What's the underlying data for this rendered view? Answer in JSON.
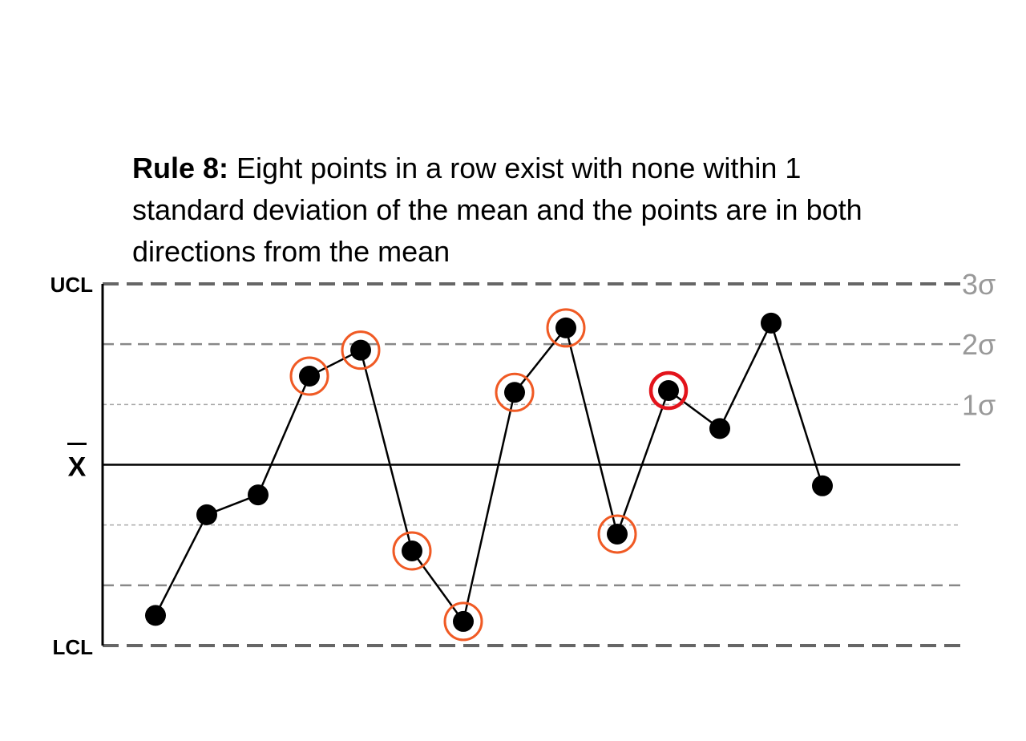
{
  "chart_data": {
    "type": "line",
    "title_bold": "Rule 8:",
    "title_text": " Eight points in a row exist with none within 1 standard deviation of the mean and the points are in both directions from the mean",
    "xlabel": "",
    "ylabel": "",
    "ylim": [
      -3,
      3
    ],
    "center_label": "X",
    "limit_labels": {
      "upper": "UCL",
      "lower": "LCL"
    },
    "sigma_labels": [
      "1σ",
      "2σ",
      "3σ"
    ],
    "series": [
      {
        "values": [
          -2.5,
          -0.83,
          -0.5,
          1.47,
          1.9,
          -1.43,
          -2.6,
          1.2,
          2.27,
          -1.15,
          1.23,
          0.6,
          2.35,
          -0.35
        ]
      }
    ],
    "flagged_points": [
      3,
      4,
      5,
      6,
      7,
      8,
      9
    ],
    "trigger_point": 10,
    "colors": {
      "line": "#000000",
      "point": "#000000",
      "flag_ring": "#f05a24",
      "trigger_ring": "#e3141c",
      "limit_line": "#666666",
      "sigma2_line": "#888888",
      "sigma1_line": "#aaaaaa",
      "sigma_label": "#999999"
    }
  }
}
